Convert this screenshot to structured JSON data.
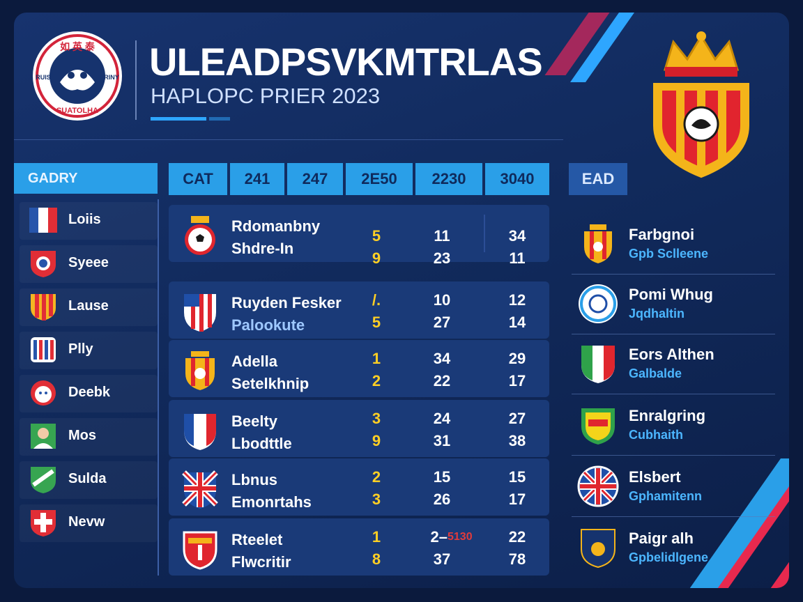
{
  "header": {
    "title": "ULEADPSVKMTRLAS",
    "subtitle": "HAPLOPC PRIER 2023",
    "logo_text_top": "如 英 泰",
    "logo_text_bottom": "SUATOLHA",
    "logo_text_left": "RUIS",
    "logo_text_right": "RINY"
  },
  "left": {
    "heading": "GADRY",
    "items": [
      {
        "label": "Loiis"
      },
      {
        "label": "Syeee"
      },
      {
        "label": "Lause"
      },
      {
        "label": "Plly"
      },
      {
        "label": "Deebk"
      },
      {
        "label": "Mos"
      },
      {
        "label": "Sulda"
      },
      {
        "label": "Nevw"
      }
    ]
  },
  "table": {
    "headers": [
      "CAT",
      "241",
      "247",
      "2E50",
      "2230",
      "3040"
    ],
    "rows": [
      {
        "name1": "Rdomanbny",
        "name2": "Shdre-In",
        "a1": "5",
        "a2": "9",
        "b1": "11",
        "b2": "23",
        "c1": "34",
        "c2": "11"
      },
      {
        "name1": "Ruyden Fesker",
        "name2": "Palookute",
        "a1": "/.",
        "a2": "5",
        "b1": "10",
        "b2": "27",
        "c1": "12",
        "c2": "14"
      },
      {
        "name1": "Adella",
        "name2": "Setelkhnip",
        "a1": "1",
        "a2": "2",
        "b1": "34",
        "b2": "22",
        "c1": "29",
        "c2": "17"
      },
      {
        "name1": "Beelty",
        "name2": "Lbodttle",
        "a1": "3",
        "a2": "9",
        "b1": "24",
        "b2": "31",
        "c1": "27",
        "c2": "38"
      },
      {
        "name1": "Lbnus",
        "name2": "Emonrtahs",
        "a1": "2",
        "a2": "3",
        "b1": "15",
        "b2": "26",
        "c1": "15",
        "c2": "17"
      },
      {
        "name1": "Rteelet",
        "name2": "Flwcritir",
        "a1": "1",
        "a2": "8",
        "b1": "2–",
        "b1_red": "5130",
        "b2": "37",
        "c1": "22",
        "c2": "78"
      }
    ]
  },
  "right": {
    "heading": "EAD",
    "items": [
      {
        "name": "Farbgnoi",
        "sub": "Gpb Sclleene"
      },
      {
        "name": "Pomi Whug",
        "sub": "Jqdhaltin"
      },
      {
        "name": "Eors Althen",
        "sub": "Galbalde"
      },
      {
        "name": "Enralgring",
        "sub": "Cubhaith"
      },
      {
        "name": "Elsbert",
        "sub": "Gphamitenn"
      },
      {
        "name": "Paigr alh",
        "sub": "Gpbelidlgene"
      }
    ]
  },
  "colors": {
    "background": "#0b1a3d",
    "accent_blue": "#2a9fe8",
    "yellow_value": "#ffcf24",
    "stripe_red": "#e8294e"
  }
}
